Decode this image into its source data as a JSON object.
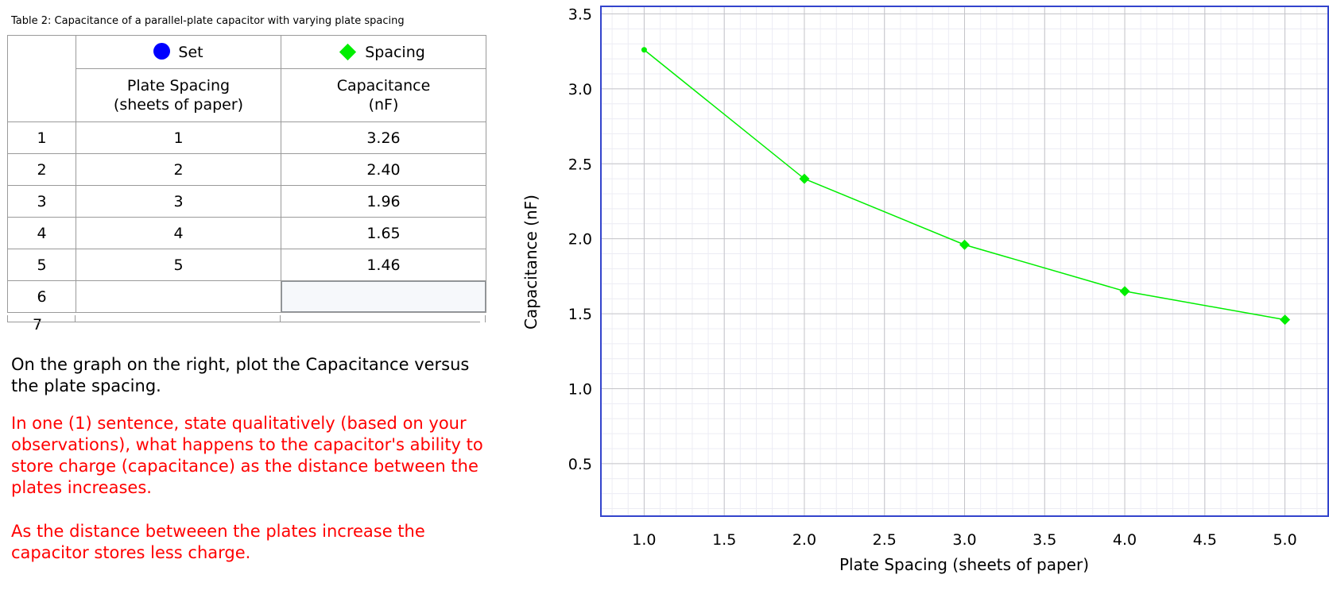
{
  "table": {
    "caption": "Table 2: Capacitance of a parallel-plate capacitor with varying plate spacing",
    "legend": {
      "set_label": "Set",
      "spacing_label": "Spacing",
      "set_color": "#0000ff",
      "spacing_color": "#00ee00"
    },
    "col1_header": "Plate Spacing\n(sheets of paper)",
    "col2_header": "Capacitance\n(nF)",
    "rows": [
      {
        "index": "1",
        "spacing": "1",
        "capacitance": "3.26"
      },
      {
        "index": "2",
        "spacing": "2",
        "capacitance": "2.40"
      },
      {
        "index": "3",
        "spacing": "3",
        "capacitance": "1.96"
      },
      {
        "index": "4",
        "spacing": "4",
        "capacitance": "1.65"
      },
      {
        "index": "5",
        "spacing": "5",
        "capacitance": "1.46"
      },
      {
        "index": "6",
        "spacing": "",
        "capacitance": ""
      }
    ],
    "cut_row_index": "7"
  },
  "text": {
    "instruction": "On the graph on the right, plot the Capacitance versus the plate spacing.",
    "question": "In one (1) sentence, state qualitatively (based on your observations), what happens to the capacitor's ability to store charge (capacitance) as the distance between the plates increases.",
    "answer": "As the distance betweeen the plates increase the capacitor stores less charge."
  },
  "chart_data": {
    "type": "line",
    "x": [
      1,
      2,
      3,
      4,
      5
    ],
    "series": [
      {
        "values": [
          3.26,
          2.4,
          1.96,
          1.65,
          1.46
        ],
        "color": "#00ee00",
        "marker": "diamond"
      }
    ],
    "xlabel": "Plate Spacing (sheets of paper)",
    "ylabel": "Capacitance (nF)",
    "xlim": [
      0.73,
      5.27
    ],
    "ylim": [
      0.15,
      3.55
    ],
    "x_ticks": [
      "1.0",
      "1.5",
      "2.0",
      "2.5",
      "3.0",
      "3.5",
      "4.0",
      "4.5",
      "5.0"
    ],
    "y_ticks": [
      "0.5",
      "1.0",
      "1.5",
      "2.0",
      "2.5",
      "3.0",
      "3.5"
    ],
    "grid": true,
    "minor_grid": true,
    "frame_color": "#3344cc"
  }
}
